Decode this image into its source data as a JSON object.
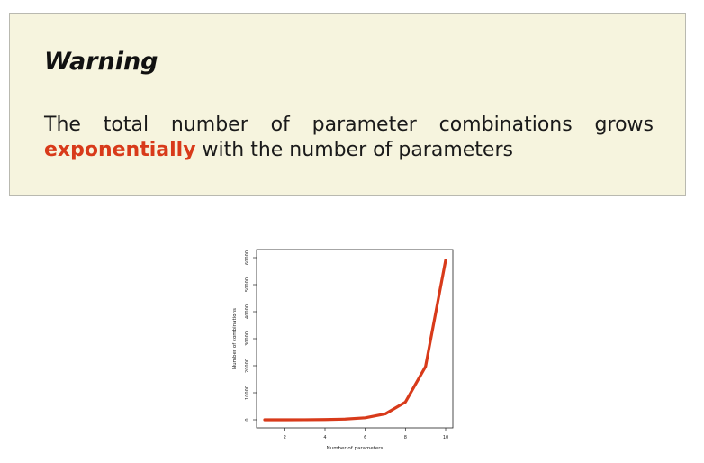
{
  "warning": {
    "title": "Warning",
    "text_before": "The total number of parameter combinations grows ",
    "emphasis": "exponentially",
    "text_after": " with the number of parameters",
    "emphasis_color": "#d83a1a",
    "background": "#f6f4de"
  },
  "chart_data": {
    "type": "line",
    "title": "",
    "xlabel": "Number of parameters",
    "ylabel": "Number of combinations",
    "x": [
      1,
      2,
      3,
      4,
      5,
      6,
      7,
      8,
      9,
      10
    ],
    "series": [
      {
        "values": [
          3,
          9,
          27,
          81,
          243,
          729,
          2187,
          6561,
          19683,
          59049
        ],
        "color": "#d83a1a"
      }
    ],
    "xticks": [
      2,
      4,
      6,
      8,
      10
    ],
    "yticks": [
      0,
      10000,
      20000,
      30000,
      40000,
      50000,
      60000
    ],
    "xlim": [
      1,
      10
    ],
    "ylim": [
      0,
      60000
    ],
    "grid": false,
    "legend": "none"
  }
}
